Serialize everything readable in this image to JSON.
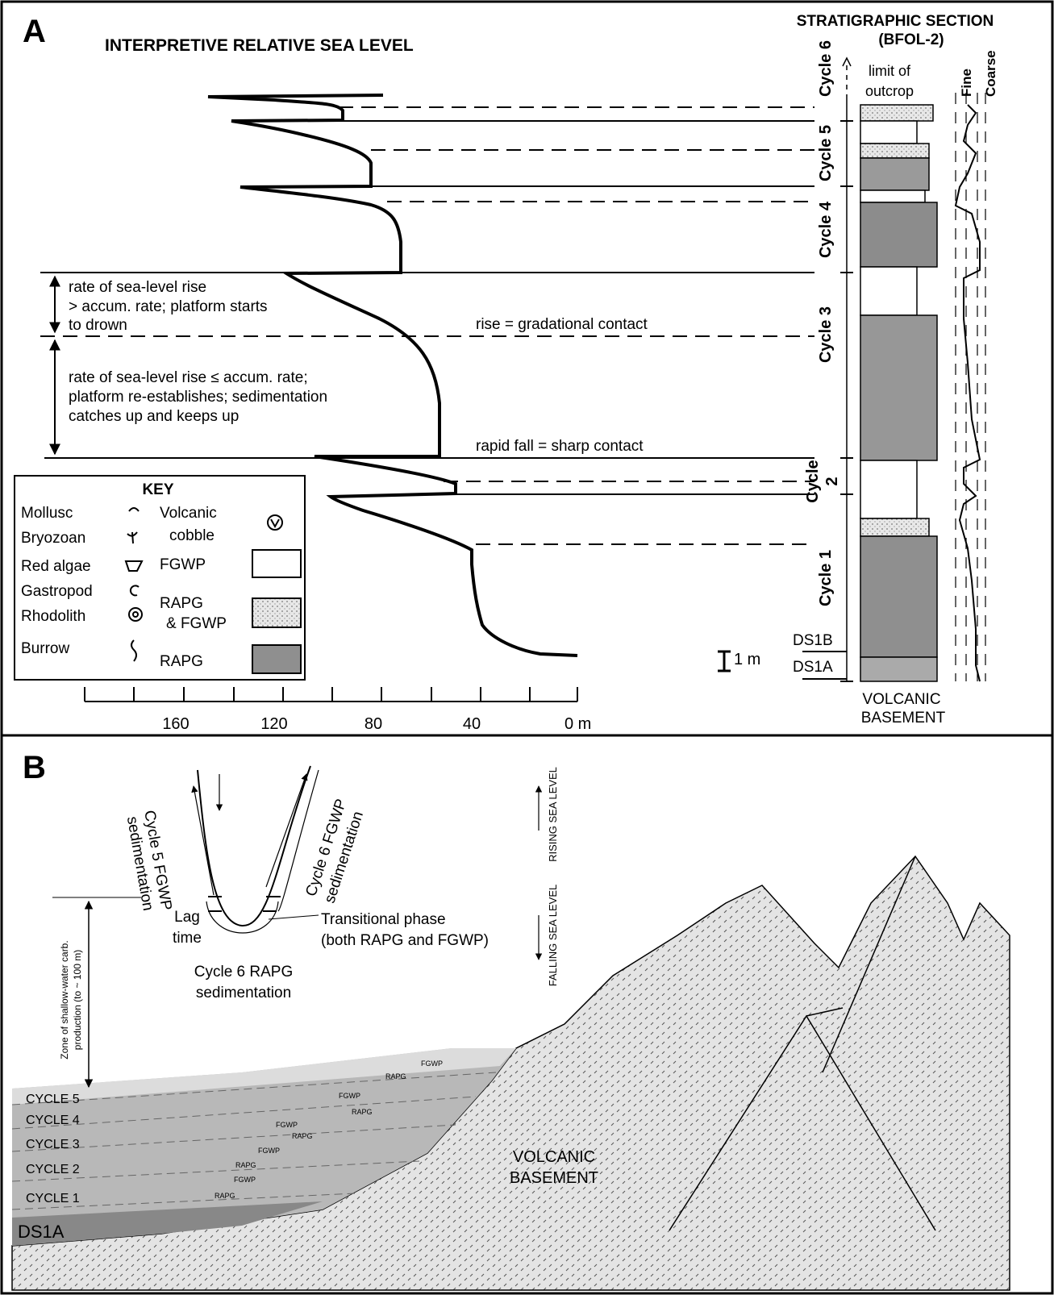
{
  "panel_a": {
    "label": "A",
    "title": "INTERPRETIVE RELATIVE SEA LEVEL",
    "section_title": [
      "STRATIGRAPHIC SECTION",
      "(BFOL-2)"
    ],
    "outcrop_limit": [
      "limit of",
      "outcrop"
    ],
    "grain_size": [
      "Fine",
      "Coarse"
    ],
    "cycles": [
      "Cycle 6",
      "Cycle 5",
      "Cycle 4",
      "Cycle 3",
      "Cycle 1"
    ],
    "cycle_2": [
      "Cycle",
      "2"
    ],
    "drowning_note": [
      "rate of sea-level rise",
      "> accum. rate; platform starts",
      "to drown"
    ],
    "keep_up_note": [
      "rate of sea-level rise ≤ accum. rate;",
      "platform re-establishes; sedimentation",
      "catches up and keeps up"
    ],
    "gradational_note": "rise = gradational contact",
    "sharp_note": "rapid fall = sharp contact",
    "key": {
      "title": "KEY",
      "fossils": [
        "Mollusc",
        "Bryozoan",
        "Red algae",
        "Gastropod",
        "Rhodolith",
        "Burrow"
      ],
      "volcanic": [
        "Volcanic",
        "cobble"
      ],
      "fgwp": "FGWP",
      "mixed": [
        "RAPG",
        "& FGWP"
      ],
      "rapg": "RAPG"
    },
    "scale": "1 m",
    "samples": [
      "DS1B",
      "DS1A"
    ],
    "basement": [
      "VOLCANIC",
      "BASEMENT"
    ],
    "axis_ticks": [
      "160",
      "120",
      "80",
      "40",
      "0 m"
    ]
  },
  "panel_b": {
    "label": "B",
    "cycle5_fgwp": [
      "Cycle 5 FGWP",
      "sedimentation"
    ],
    "cycle6_fgwp": [
      "Cycle 6 FGWP",
      "sedimentation"
    ],
    "lag": [
      "Lag",
      "time"
    ],
    "transitional": [
      "Transitional phase",
      "(both RAPG and FGWP)"
    ],
    "cycle6_rapg": [
      "Cycle 6 RAPG",
      "sedimentation"
    ],
    "rising": "RISING SEA LEVEL",
    "falling": "FALLING SEA LEVEL",
    "zone": [
      "Zone of shallow-water carb.",
      "production (to ~ 100 m)"
    ],
    "cycle_labels": [
      "CYCLE 5",
      "CYCLE 4",
      "CYCLE 3",
      "CYCLE 2",
      "CYCLE 1",
      "DS1A"
    ],
    "layer_labels": [
      "FGWP",
      "RAPG",
      "FGWP",
      "RAPG",
      "FGWP",
      "RAPG",
      "FGWP",
      "RAPG",
      "FGWP",
      "RAPG"
    ],
    "basement": [
      "VOLCANIC",
      "BASEMENT"
    ]
  }
}
